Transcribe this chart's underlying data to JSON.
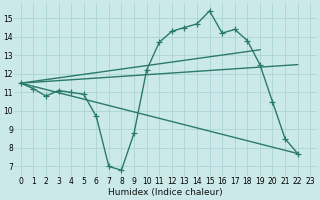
{
  "bg_color": "#cce9e9",
  "grid_color": "#aad4d4",
  "line_color": "#2a7a6a",
  "marker": "+",
  "marker_size": 4,
  "line_width": 1.0,
  "xlabel": "Humidex (Indice chaleur)",
  "xlim": [
    -0.5,
    23.5
  ],
  "ylim": [
    6.5,
    15.8
  ],
  "yticks": [
    7,
    8,
    9,
    10,
    11,
    12,
    13,
    14,
    15
  ],
  "xticks": [
    0,
    1,
    2,
    3,
    4,
    5,
    6,
    7,
    8,
    9,
    10,
    11,
    12,
    13,
    14,
    15,
    16,
    17,
    18,
    19,
    20,
    21,
    22,
    23
  ],
  "series1_x": [
    0,
    1,
    2,
    3,
    4,
    5,
    6,
    7,
    8,
    9,
    10,
    11,
    12,
    13,
    14,
    15,
    16,
    17,
    18,
    19,
    20,
    21,
    22
  ],
  "series1_y": [
    11.5,
    11.2,
    10.8,
    11.1,
    11.0,
    10.9,
    9.7,
    7.0,
    6.8,
    8.8,
    12.2,
    13.7,
    14.3,
    14.5,
    14.7,
    15.4,
    14.2,
    14.4,
    13.8,
    12.5,
    10.5,
    8.5,
    7.7
  ],
  "line1_x": [
    0,
    22
  ],
  "line1_y": [
    11.5,
    12.5
  ],
  "line2_x": [
    0,
    19
  ],
  "line2_y": [
    11.5,
    13.3
  ],
  "line3_x": [
    0,
    22
  ],
  "line3_y": [
    11.5,
    7.7
  ],
  "tick_fontsize": 5.5,
  "xlabel_fontsize": 6.5
}
